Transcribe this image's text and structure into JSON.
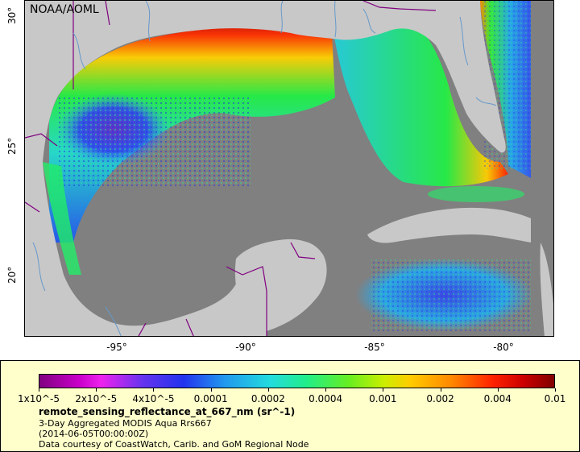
{
  "map": {
    "attribution": "NOAA/AOML",
    "lat_labels": [
      "30°",
      "25°",
      "20°"
    ],
    "lon_labels": [
      "-95°",
      "-90°",
      "-85°",
      "-80°"
    ],
    "colors": {
      "ocean_nodata": "#808080",
      "land": "#c8c8c8",
      "border": "#800080",
      "river": "#6699cc"
    }
  },
  "legend": {
    "colorbar_labels": [
      "1x10^-5",
      "2x10^-5",
      "4x10^-5",
      "0.0001",
      "0.0002",
      "0.0004",
      "0.001",
      "0.002",
      "0.004",
      "0.01"
    ],
    "variable": "remote_sensing_reflectance_at_667_nm (sr^-1)",
    "line2": "3-Day Aggregated MODIS Aqua Rrs667",
    "line3": "(2014-06-05T00:00:00Z)",
    "line4": "Data courtesy of CoastWatch, Carib. and GoM Regional Node"
  }
}
